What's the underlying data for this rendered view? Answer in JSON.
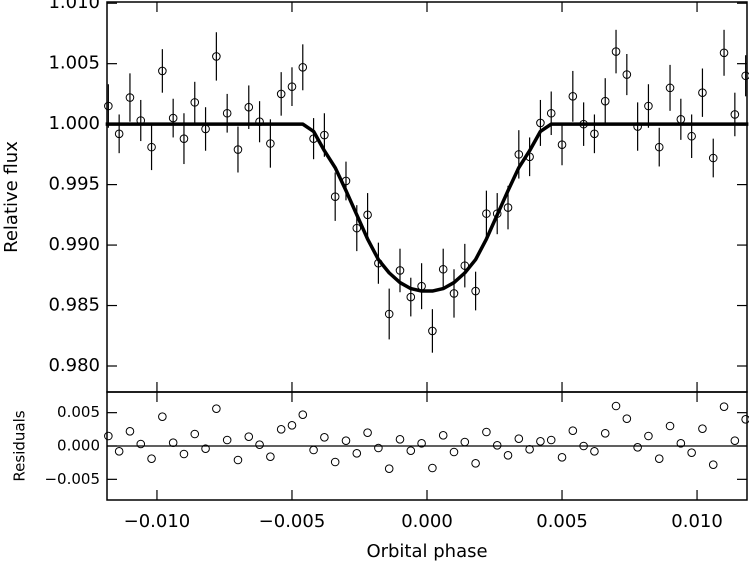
{
  "chart_data": [
    {
      "type": "scatter",
      "ylabel": "Relative flux",
      "xlim": [
        -0.01185,
        0.01185
      ],
      "ylim": [
        0.97785,
        1.0101
      ],
      "yticks": [
        {
          "value": 0.98,
          "label": "0.980"
        },
        0.985,
        {
          "value": 0.99,
          "label": "0.990"
        },
        0.995,
        {
          "value": 1.0,
          "label": "1.000"
        },
        1.005,
        {
          "value": 1.01,
          "label": "1.010"
        }
      ],
      "x": [
        -0.0118,
        -0.0114,
        -0.011,
        -0.0106,
        -0.0102,
        -0.0098,
        -0.0094,
        -0.009,
        -0.0086,
        -0.0082,
        -0.0078,
        -0.0074,
        -0.007,
        -0.0066,
        -0.0062,
        -0.0058,
        -0.0054,
        -0.005,
        -0.0046,
        -0.0042,
        -0.0038,
        -0.0034,
        -0.003,
        -0.0026,
        -0.0022,
        -0.0018,
        -0.0014,
        -0.001,
        -0.0006,
        -0.0002,
        0.0002,
        0.0006,
        0.001,
        0.0014,
        0.0018,
        0.0022,
        0.0026,
        0.003,
        0.0034,
        0.0038,
        0.0042,
        0.0046,
        0.005,
        0.0054,
        0.0058,
        0.0062,
        0.0066,
        0.007,
        0.0074,
        0.0078,
        0.0082,
        0.0086,
        0.009,
        0.0094,
        0.0098,
        0.0102,
        0.0106,
        0.011,
        0.0114,
        0.0118
      ],
      "values": [
        1.0015,
        0.9992,
        1.0022,
        1.0003,
        0.9981,
        1.0044,
        1.0005,
        0.9988,
        1.0018,
        0.9996,
        1.0056,
        1.0009,
        0.9979,
        1.0014,
        1.0002,
        0.9984,
        1.0025,
        1.0031,
        1.0047,
        0.9988,
        0.9991,
        0.994,
        0.9953,
        0.9914,
        0.9925,
        0.9885,
        0.9843,
        0.9879,
        0.9857,
        0.9866,
        0.9829,
        0.988,
        0.986,
        0.9883,
        0.9862,
        0.9926,
        0.9926,
        0.9931,
        0.9975,
        0.9973,
        1.0001,
        1.0009,
        0.9983,
        1.0023,
        1.0,
        0.9992,
        1.0019,
        1.006,
        1.0041,
        0.9998,
        1.0015,
        0.9981,
        1.003,
        1.0004,
        0.999,
        1.0026,
        0.9972,
        1.0059,
        1.0008,
        1.004
      ],
      "errors": [
        0.0018,
        0.0016,
        0.002,
        0.0017,
        0.0019,
        0.0018,
        0.0016,
        0.0021,
        0.0017,
        0.0018,
        0.002,
        0.0016,
        0.0019,
        0.0018,
        0.0017,
        0.002,
        0.0018,
        0.0016,
        0.0019,
        0.0017,
        0.0018,
        0.002,
        0.0016,
        0.0019,
        0.0018,
        0.0017,
        0.0021,
        0.0018,
        0.0016,
        0.0019,
        0.0018,
        0.0017,
        0.002,
        0.0018,
        0.0016,
        0.0019,
        0.0017,
        0.0018,
        0.002,
        0.0016,
        0.0019,
        0.0018,
        0.0017,
        0.0021,
        0.0018,
        0.0016,
        0.0019,
        0.0018,
        0.0017,
        0.002,
        0.0018,
        0.0016,
        0.0019,
        0.0017,
        0.0018,
        0.002,
        0.0016,
        0.0019,
        0.0018,
        0.0017
      ],
      "model": {
        "type": "line",
        "x": [
          -0.0119,
          -0.0046,
          -0.0042,
          -0.0038,
          -0.0034,
          -0.003,
          -0.0026,
          -0.0022,
          -0.0018,
          -0.0014,
          -0.001,
          -0.0006,
          -0.0002,
          0.0002,
          0.0006,
          0.001,
          0.0014,
          0.0018,
          0.0022,
          0.0026,
          0.003,
          0.0034,
          0.0038,
          0.0042,
          0.0046,
          0.0119
        ],
        "values": [
          1.0,
          1.0,
          0.9994,
          0.9978,
          0.9964,
          0.9945,
          0.9925,
          0.9905,
          0.9888,
          0.9877,
          0.9869,
          0.9864,
          0.9862,
          0.9862,
          0.9864,
          0.9869,
          0.9877,
          0.9888,
          0.9905,
          0.9925,
          0.9945,
          0.9964,
          0.9978,
          0.9994,
          1.0,
          1.0
        ]
      }
    },
    {
      "type": "scatter",
      "ylabel": "Residuals",
      "xlabel": "Orbital phase",
      "xlim": [
        -0.01185,
        0.01185
      ],
      "ylim": [
        -0.0081,
        0.0081
      ],
      "xticks": [
        {
          "value": -0.01,
          "label": "−0.010"
        },
        {
          "value": -0.005,
          "label": "−0.005"
        },
        {
          "value": 0,
          "label": "0.000"
        },
        0.005,
        {
          "value": 0.01,
          "label": "0.010"
        }
      ],
      "yticks": [
        {
          "value": -0.005,
          "label": "−0.005"
        },
        {
          "value": 0,
          "label": "0.000"
        },
        0.005
      ],
      "x": [
        -0.0118,
        -0.0114,
        -0.011,
        -0.0106,
        -0.0102,
        -0.0098,
        -0.0094,
        -0.009,
        -0.0086,
        -0.0082,
        -0.0078,
        -0.0074,
        -0.007,
        -0.0066,
        -0.0062,
        -0.0058,
        -0.0054,
        -0.005,
        -0.0046,
        -0.0042,
        -0.0038,
        -0.0034,
        -0.003,
        -0.0026,
        -0.0022,
        -0.0018,
        -0.0014,
        -0.001,
        -0.0006,
        -0.0002,
        0.0002,
        0.0006,
        0.001,
        0.0014,
        0.0018,
        0.0022,
        0.0026,
        0.003,
        0.0034,
        0.0038,
        0.0042,
        0.0046,
        0.005,
        0.0054,
        0.0058,
        0.0062,
        0.0066,
        0.007,
        0.0074,
        0.0078,
        0.0082,
        0.0086,
        0.009,
        0.0094,
        0.0098,
        0.0102,
        0.0106,
        0.011,
        0.0114,
        0.0118
      ],
      "values": [
        0.0015,
        -0.0008,
        0.0022,
        0.0003,
        -0.0019,
        0.0044,
        0.0005,
        -0.0012,
        0.0018,
        -0.0004,
        0.0056,
        0.0009,
        -0.0021,
        0.0014,
        0.0002,
        -0.0016,
        0.0025,
        0.0031,
        0.0047,
        -0.0006,
        0.0013,
        -0.0024,
        0.0008,
        -0.0011,
        0.002,
        -0.0003,
        -0.0034,
        0.001,
        -0.0007,
        0.0004,
        -0.0033,
        0.0016,
        -0.0009,
        0.0006,
        -0.0026,
        0.0021,
        0.0001,
        -0.0014,
        0.0011,
        -0.0005,
        0.0007,
        0.0009,
        -0.0017,
        0.0023,
        0,
        -0.0008,
        0.0019,
        0.006,
        0.0041,
        -0.0002,
        0.0015,
        -0.0019,
        0.003,
        0.0004,
        -0.001,
        0.0026,
        -0.0028,
        0.0059,
        0.0008,
        0.004
      ]
    }
  ]
}
